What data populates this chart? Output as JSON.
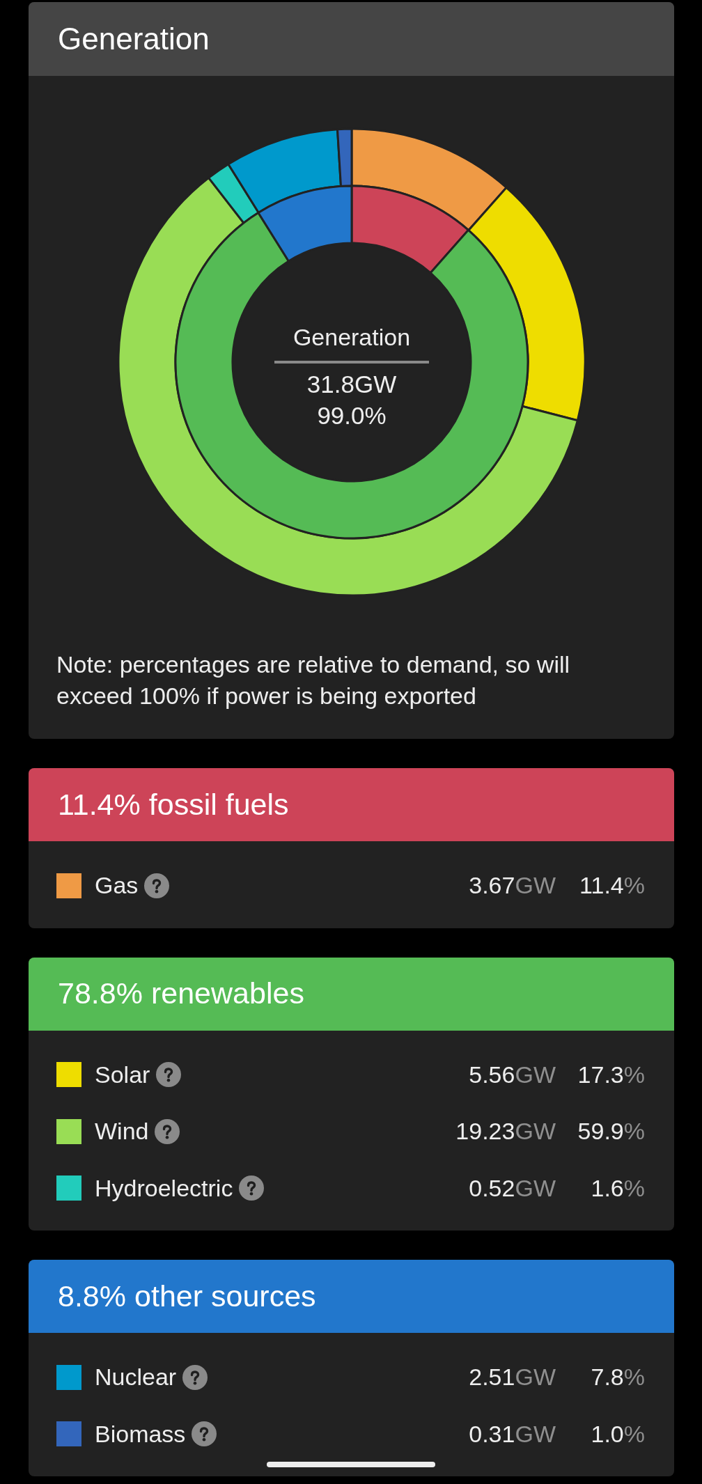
{
  "chart_data": [
    {
      "type": "donut",
      "title": "Generation",
      "categories": [
        "Gas",
        "Solar",
        "Wind",
        "Hydroelectric",
        "Nuclear",
        "Biomass"
      ],
      "values": [
        3.67,
        5.56,
        19.23,
        0.52,
        2.51,
        0.31
      ],
      "colors": [
        "#ef9a45",
        "#eedd00",
        "#99dd55",
        "#22ccbb",
        "#0099cc",
        "#3366bb"
      ],
      "value_labels": [
        "3.67GW",
        "5.56GW",
        "19.23GW",
        "0.52GW",
        "2.51GW",
        "0.31GW"
      ],
      "legend": "bottom",
      "annotations": [
        {
          "text": "11.4%",
          "x": "Gas"
        },
        {
          "text": "17.3%",
          "x": "Solar"
        },
        {
          "text": "59.9%",
          "x": "Wind"
        },
        {
          "text": "1.6%",
          "x": "Hydroelectric"
        },
        {
          "text": "7.8%",
          "x": "Nuclear"
        },
        {
          "text": "1.0%",
          "x": "Biomass"
        },
        "Note: percentages are relative to demand, so will exceed 100% if power is being exported"
      ]
    },
    {
      "type": "donut",
      "categories": [
        "fossil fuels",
        "renewables",
        "other sources"
      ],
      "values": [
        11.4,
        78.8,
        8.8
      ],
      "colors": [
        "#cd4458",
        "#55bb55",
        "#2277cc"
      ],
      "value_labels": [
        "11.4%",
        "78.8%",
        "8.8%"
      ],
      "annotations": [
        "Generation",
        "31.8GW",
        "99.0%"
      ]
    }
  ]
}
